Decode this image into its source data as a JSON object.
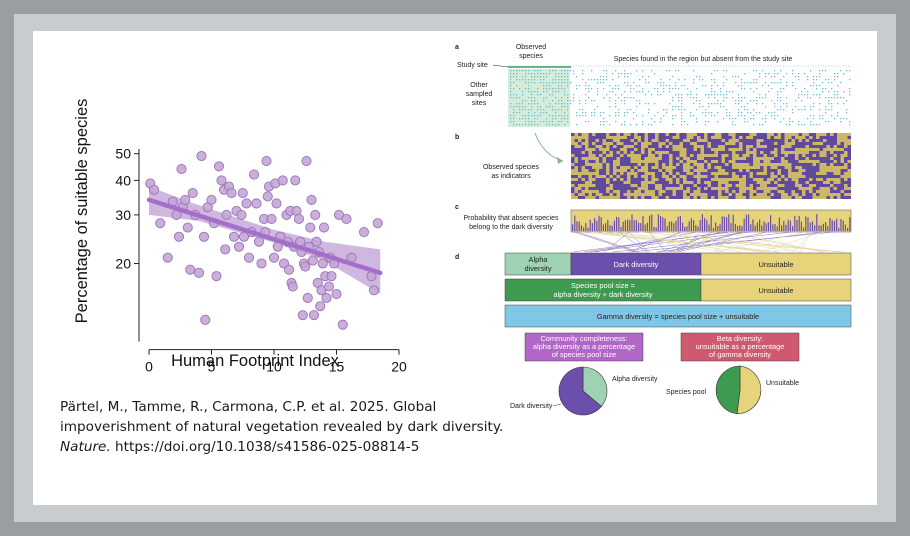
{
  "chart_data": {
    "type": "scatter",
    "xlabel": "Human Footprint Index",
    "ylabel": "Percentage of suitable species",
    "xlim": [
      0,
      20
    ],
    "ylim": [
      10,
      52
    ],
    "yscale": "log",
    "xticks": [
      "0",
      "5",
      "10",
      "15",
      "20"
    ],
    "yticks": [
      "20",
      "30",
      "40",
      "50"
    ],
    "grid": false,
    "trend": {
      "x": [
        0,
        18.5
      ],
      "y": [
        34,
        18.5
      ]
    },
    "band_upper": {
      "x": [
        0,
        4,
        10,
        14,
        18.5
      ],
      "y": [
        38,
        32.5,
        26.5,
        24,
        22.5
      ]
    },
    "band_lower": {
      "x": [
        0,
        4,
        10,
        14,
        18.5
      ],
      "y": [
        30,
        28.5,
        23.8,
        20.5,
        15.5
      ]
    },
    "color": "#a97cc6",
    "points": {
      "x": [
        0.1,
        0.4,
        0.9,
        1.5,
        1.9,
        2.2,
        2.4,
        2.6,
        2.7,
        2.9,
        3.1,
        3.3,
        3.5,
        3.7,
        4.0,
        4.2,
        4.4,
        4.5,
        4.7,
        5.0,
        5.2,
        5.4,
        5.6,
        5.8,
        6.0,
        6.1,
        6.2,
        6.4,
        6.6,
        6.8,
        7.0,
        7.2,
        7.4,
        7.5,
        7.6,
        7.8,
        8.0,
        8.2,
        8.4,
        8.6,
        8.8,
        9.0,
        9.2,
        9.3,
        9.4,
        9.5,
        9.6,
        9.8,
        10.0,
        10.1,
        10.2,
        10.3,
        10.5,
        10.7,
        10.8,
        11.0,
        11.1,
        11.2,
        11.3,
        11.4,
        11.5,
        11.6,
        11.7,
        11.8,
        12.0,
        12.1,
        12.2,
        12.3,
        12.4,
        12.5,
        12.6,
        12.7,
        12.8,
        12.9,
        13.0,
        13.1,
        13.2,
        13.3,
        13.4,
        13.5,
        13.6,
        13.7,
        13.8,
        13.9,
        14.0,
        14.1,
        14.2,
        14.4,
        14.5,
        14.6,
        14.8,
        15.0,
        15.2,
        15.5,
        15.8,
        16.2,
        17.2,
        17.8,
        18.0,
        18.3
      ],
      "y": [
        39,
        37,
        28,
        21,
        33.5,
        30,
        25,
        44,
        32,
        34,
        27,
        19,
        36,
        30,
        18.5,
        49,
        25,
        12.5,
        32,
        34,
        28,
        18,
        45,
        40,
        37,
        22.5,
        30,
        38,
        36,
        25,
        31,
        23,
        30,
        36,
        25,
        33,
        21,
        26,
        42,
        33,
        24,
        20,
        29,
        26,
        47,
        35,
        38,
        29,
        21,
        39,
        33,
        23,
        25,
        40,
        20,
        30,
        24,
        19,
        31,
        17,
        16.5,
        23,
        40,
        31,
        29,
        24,
        22,
        13,
        20,
        19.5,
        47,
        15,
        23,
        27,
        34,
        20.5,
        13,
        30,
        24,
        17,
        22,
        14,
        16,
        20,
        27,
        18,
        15,
        16.5,
        21,
        18,
        20,
        15.5,
        30,
        12,
        29,
        21,
        26,
        18,
        16,
        28
      ]
    }
  },
  "diagram": {
    "panel_a": {
      "letter": "a",
      "observed_species": [
        "Observed",
        "species"
      ],
      "absent_header": "Species found in the region but absent from the study site",
      "study_site": "Study site",
      "other_sites": [
        "Other",
        "sampled",
        "sites"
      ]
    },
    "panel_b": {
      "letter": "b",
      "label": [
        "Observed species",
        "as indicators"
      ]
    },
    "panel_c": {
      "letter": "c",
      "label": [
        "Probability that absent species",
        "belong to the dark diversity"
      ]
    },
    "panel_d": {
      "letter": "d",
      "alpha": [
        "Alpha",
        "diversity"
      ],
      "dark": "Dark diversity",
      "unsuitable": "Unsuitable",
      "pool": [
        "Species pool size =",
        "alpha diversity + dark diversity"
      ],
      "unsuitable2": "Unsuitable",
      "gamma": "Gamma diversity = species pool size + unsuitable",
      "completeness": [
        "Community completeness:",
        "alpha diversity as a percentage",
        "of species pool size"
      ],
      "beta": [
        "Beta diversity:",
        "unsuitable as a percentage",
        "of gamma diversity"
      ],
      "pie1_alpha": "Alpha diversity",
      "pie1_dark": "Dark diversity",
      "pie2_pool": "Species pool",
      "pie2_unsuitable": "Unsuitable"
    },
    "colors": {
      "alpha": "#9fd2b3",
      "dark": "#6c4eac",
      "unsuitable": "#e7d37a",
      "pool": "#3e9a4e",
      "gamma": "#7fc7e6",
      "completeness": "#b167c6",
      "beta": "#cf5a6f",
      "heat_yellow": "#cdb86a",
      "heat_purple": "#5f4aa0",
      "dots": "#66bfd6"
    }
  },
  "citation": {
    "authors": "Pärtel, M., Tamme, R., Carmona, C.P. et al. 2025. Global impoverishment of natural vegetation revealed by dark diversity.",
    "journal": "Nature.",
    "doi": "https://doi.org/10.1038/s41586-025-08814-5"
  }
}
